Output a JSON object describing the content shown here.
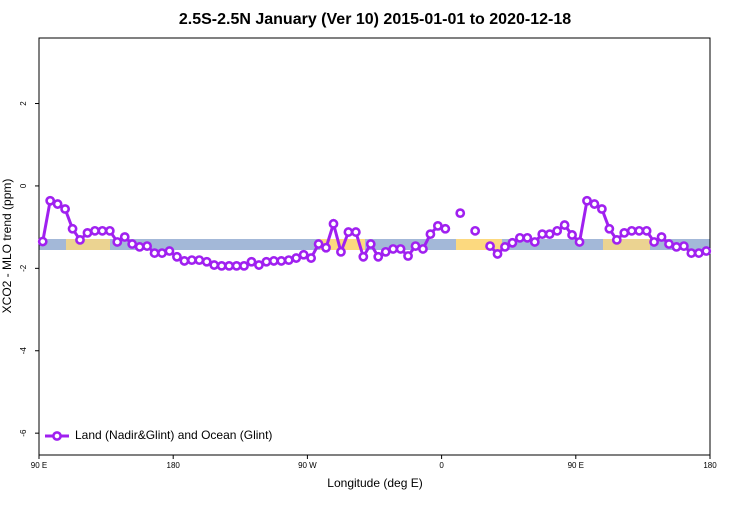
{
  "chart_data": {
    "type": "line",
    "title": "2.5S-2.5N January (Ver 10)   2015-01-01 to 2020-12-18",
    "x_label": "Longitude (deg E)",
    "y_label": "XCO2 - MLO trend (ppm)",
    "xlim": [
      90,
      540
    ],
    "ylim": [
      -6.53,
      3.59
    ],
    "xticks": [
      {
        "value": 90,
        "label": "90 E"
      },
      180,
      {
        "value": 270,
        "label": "90 W"
      },
      {
        "value": 360,
        "label": "0"
      },
      {
        "value": 450,
        "label": "90 E"
      },
      {
        "value": 540,
        "label": "180"
      }
    ],
    "yticks": [
      -6,
      -4,
      -2,
      0,
      2
    ],
    "legend": "bottom-left",
    "x": [
      92.5,
      97.5,
      102.5,
      107.5,
      112.5,
      117.5,
      122.5,
      127.5,
      132.5,
      137.5,
      142.5,
      147.5,
      152.5,
      157.5,
      162.5,
      167.5,
      172.5,
      177.5,
      182.5,
      187.5,
      192.5,
      197.5,
      202.5,
      207.5,
      212.5,
      217.5,
      222.5,
      227.5,
      232.5,
      237.5,
      242.5,
      247.5,
      252.5,
      257.5,
      262.5,
      267.5,
      272.5,
      277.5,
      282.5,
      287.5,
      292.5,
      297.5,
      302.5,
      307.5,
      312.5,
      317.5,
      322.5,
      327.5,
      332.5,
      337.5,
      342.5,
      347.5,
      352.5,
      357.5,
      362.5,
      367.5,
      372.5,
      377.5,
      382.5,
      387.5,
      392.5,
      397.5,
      402.5,
      407.5,
      412.5,
      417.5,
      422.5,
      427.5,
      432.5,
      437.5,
      442.5,
      447.5,
      452.5,
      457.5,
      462.5,
      467.5,
      472.5,
      477.5,
      482.5,
      487.5,
      492.5,
      497.5,
      502.5,
      507.5,
      512.5,
      517.5,
      522.5,
      527.5,
      532.5,
      537.5
    ],
    "series": [
      {
        "name": "Land (Nadir&Glint) and Ocean (Glint)",
        "color": "#a020f0",
        "values": [
          -1.35,
          -0.36,
          -0.44,
          -0.56,
          -1.04,
          -1.31,
          -1.14,
          -1.09,
          -1.09,
          -1.09,
          -1.36,
          -1.24,
          -1.41,
          -1.48,
          -1.46,
          -1.63,
          -1.63,
          -1.58,
          -1.72,
          -1.82,
          -1.8,
          -1.8,
          -1.84,
          -1.92,
          -1.94,
          -1.94,
          -1.94,
          -1.94,
          -1.84,
          -1.92,
          -1.84,
          -1.82,
          -1.82,
          -1.8,
          -1.75,
          -1.67,
          -1.75,
          -1.41,
          -1.5,
          -0.92,
          -1.6,
          -1.12,
          -1.12,
          -1.72,
          -1.41,
          -1.72,
          -1.6,
          -1.53,
          -1.53,
          -1.7,
          -1.46,
          -1.53,
          -1.17,
          -0.97,
          -1.04,
          null,
          -0.66,
          null,
          -1.09,
          null,
          -1.46,
          -1.65,
          -1.48,
          -1.38,
          -1.26,
          -1.26,
          -1.36,
          -1.17,
          -1.17,
          -1.09,
          -0.95,
          -1.19,
          -1.36,
          -0.36,
          -0.44,
          -0.56,
          -1.04,
          -1.31,
          -1.14,
          -1.09,
          -1.09,
          -1.09,
          -1.36,
          -1.24,
          -1.41,
          -1.48,
          -1.46,
          -1.63,
          -1.63,
          -1.58
        ]
      }
    ]
  }
}
